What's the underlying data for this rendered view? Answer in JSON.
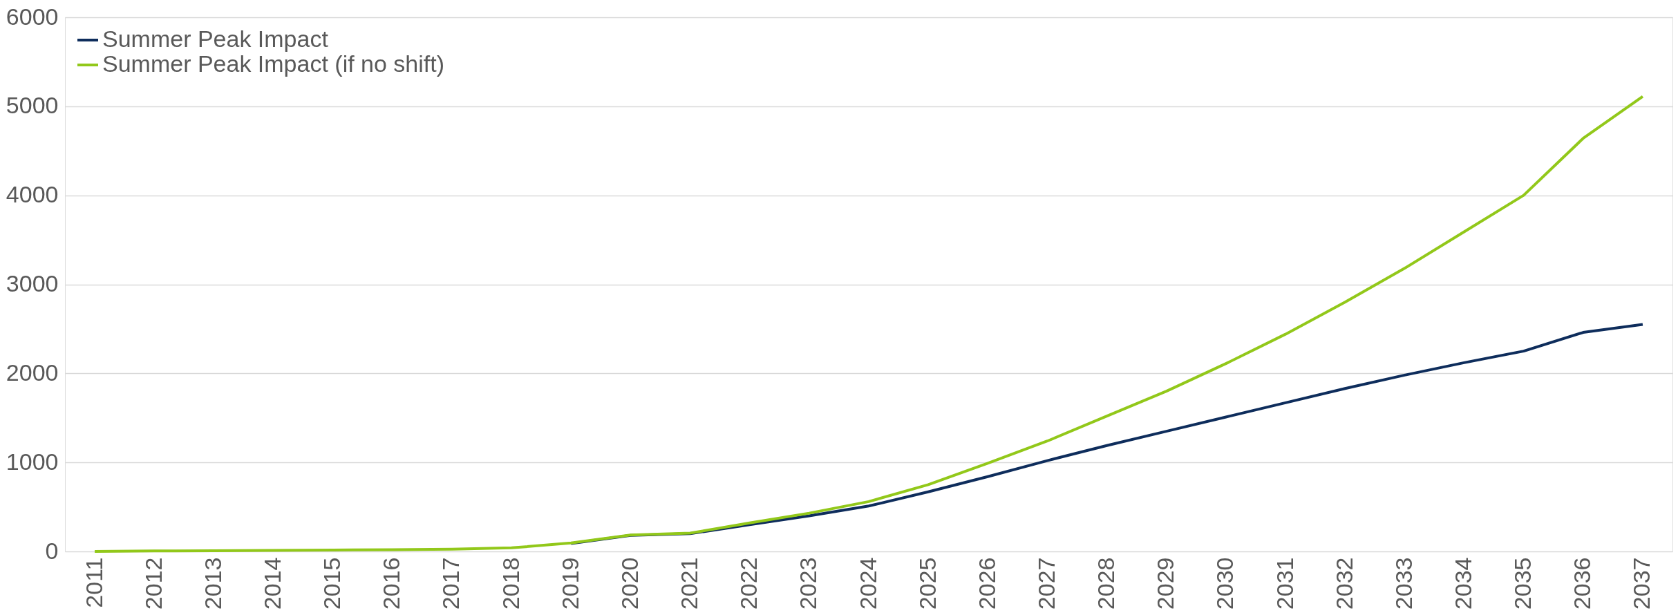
{
  "chart_data": {
    "type": "line",
    "categories": [
      "2011",
      "2012",
      "2013",
      "2014",
      "2015",
      "2016",
      "2017",
      "2018",
      "2019",
      "2020",
      "2021",
      "2022",
      "2023",
      "2024",
      "2025",
      "2026",
      "2027",
      "2028",
      "2029",
      "2030",
      "2031",
      "2032",
      "2033",
      "2034",
      "2035",
      "2036",
      "2037"
    ],
    "series": [
      {
        "name": "Summer Peak Impact",
        "color": "#0e2d5c",
        "values": [
          null,
          null,
          null,
          null,
          null,
          null,
          null,
          null,
          90,
          180,
          200,
          300,
          400,
          510,
          670,
          840,
          1020,
          1190,
          1350,
          1510,
          1670,
          1830,
          1980,
          2120,
          2250,
          2460,
          2550
        ]
      },
      {
        "name": "Summer Peak Impact (if no shift)",
        "color": "#92c81a",
        "values": [
          0,
          5,
          8,
          12,
          15,
          20,
          25,
          40,
          95,
          185,
          205,
          320,
          430,
          560,
          750,
          990,
          1240,
          1520,
          1800,
          2110,
          2440,
          2800,
          3180,
          3590,
          4000,
          4640,
          5110
        ]
      }
    ],
    "ylim": [
      0,
      6000
    ],
    "yticks": [
      0,
      1000,
      2000,
      3000,
      4000,
      5000,
      6000
    ],
    "grid": "y",
    "legend": "top left",
    "marker": "none",
    "line_style": "solid"
  }
}
